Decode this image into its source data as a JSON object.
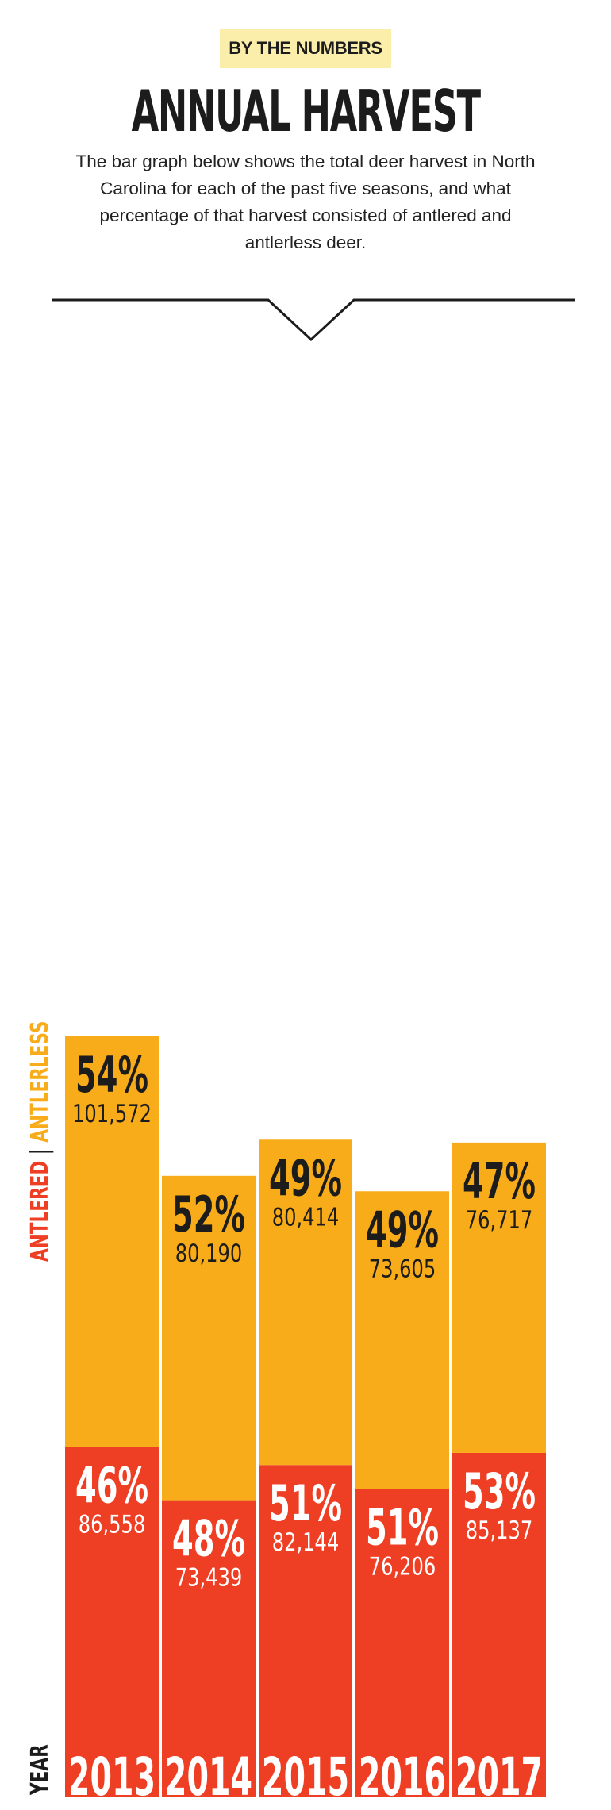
{
  "header": {
    "badge": "BY THE NUMBERS",
    "title": "ANNUAL HARVEST",
    "description": "The bar graph below shows the total deer harvest in North Carolina for each of the past five seasons, and what percentage of that harvest consisted of antlered and antlerless deer."
  },
  "colors": {
    "antlered": "#ee3f24",
    "antlerless": "#f9ac19",
    "text_dark": "#1c1c1c",
    "badge_bg": "#fbeeaa"
  },
  "chart_data": {
    "type": "bar",
    "stacked": true,
    "categories": [
      "2013",
      "2014",
      "2015",
      "2016",
      "2017"
    ],
    "category_axis_label": "YEAR",
    "legend": {
      "placement": "left-vertical",
      "separator": "|"
    },
    "series": [
      {
        "name": "ANTLERED",
        "values": [
          86558,
          73439,
          82144,
          76206,
          85137
        ],
        "percent_labels": [
          "46%",
          "48%",
          "51%",
          "51%",
          "53%"
        ],
        "value_labels": [
          "86,558",
          "73,439",
          "82,144",
          "76,206",
          "85,137"
        ]
      },
      {
        "name": "ANTLERLESS",
        "values": [
          101572,
          80190,
          80414,
          73605,
          76717
        ],
        "percent_labels": [
          "54%",
          "52%",
          "49%",
          "49%",
          "47%"
        ],
        "value_labels": [
          "101,572",
          "80,190",
          "80,414",
          "73,605",
          "76,717"
        ]
      }
    ],
    "grid": false
  }
}
